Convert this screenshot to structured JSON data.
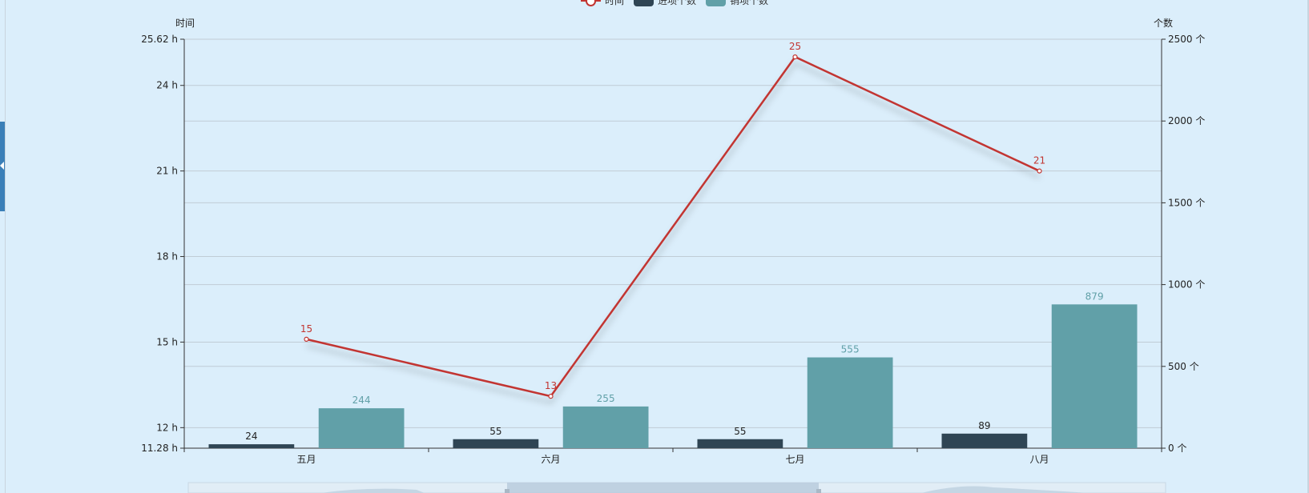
{
  "legend": {
    "items": [
      {
        "name": "时间",
        "kind": "line",
        "color": "#c23531"
      },
      {
        "name": "进项个数",
        "kind": "bar",
        "color": "#2f4554"
      },
      {
        "name": "销项个数",
        "kind": "bar",
        "color": "#61a0a8"
      }
    ]
  },
  "chart_data": {
    "type": "bar",
    "categories": [
      "五月",
      "六月",
      "七月",
      "八月"
    ],
    "y_left": {
      "name": "时间",
      "unit": "h",
      "min": 11.28,
      "max": 25.62,
      "tick_labels": [
        "11.28 h",
        "12 h",
        "15 h",
        "18 h",
        "21 h",
        "24 h",
        "25.62 h"
      ]
    },
    "y_right": {
      "name": "个数",
      "unit": "个",
      "min": 0,
      "max": 2500,
      "tick_labels": [
        "0 个",
        "500 个",
        "1000 个",
        "1500 个",
        "2000 个",
        "2500 个"
      ]
    },
    "series": [
      {
        "name": "进项个数",
        "type": "bar",
        "axis": "right",
        "color": "#2f4554",
        "values": [
          24,
          55,
          55,
          89
        ],
        "labels": [
          "24",
          "55",
          "55",
          "89"
        ]
      },
      {
        "name": "销项个数",
        "type": "bar",
        "axis": "right",
        "color": "#61a0a8",
        "values": [
          244,
          255,
          555,
          879
        ],
        "labels": [
          "244",
          "255",
          "555",
          "879"
        ]
      },
      {
        "name": "时间",
        "type": "line",
        "axis": "left",
        "color": "#c23531",
        "values": [
          15.1,
          13.1,
          25.0,
          21.0
        ],
        "labels": [
          "15",
          "13",
          "25",
          "21"
        ]
      }
    ],
    "grid": true,
    "legend_position": "top-center"
  },
  "colors": {
    "background": "#dbeefb",
    "grid": "#c0ccd6",
    "axis": "#333333",
    "zoom_fill": "#b6c9dc"
  }
}
